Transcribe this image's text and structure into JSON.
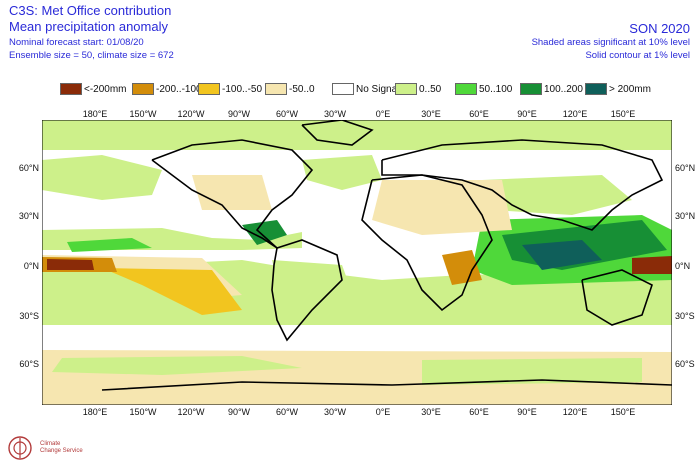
{
  "header": {
    "title": "C3S: Met Office contribution",
    "subtitle": "Mean precipitation anomaly",
    "forecast_start": "Nominal forecast start: 01/08/20",
    "ensemble": "Ensemble size = 50, climate size = 672",
    "season": "SON 2020",
    "note1": "Shaded areas significant at 10% level",
    "note2": "Solid contour at 1% level"
  },
  "legend": [
    {
      "label": "<-200mm",
      "color": "#8a2b08"
    },
    {
      "label": "-200..-100",
      "color": "#d38d0a"
    },
    {
      "label": "-100..-50",
      "color": "#f2c51f"
    },
    {
      "label": "-50..0",
      "color": "#f6e6b0"
    },
    {
      "label": "No Signal",
      "color": "#ffffff"
    },
    {
      "label": "0..50",
      "color": "#cdf08a"
    },
    {
      "label": "50..100",
      "color": "#4fd83a"
    },
    {
      "label": "100..200",
      "color": "#178f35"
    },
    {
      "label": "> 200mm",
      "color": "#0f5f5a"
    }
  ],
  "axes": {
    "lon_ticks": [
      "180°E",
      "150°W",
      "120°W",
      "90°W",
      "60°W",
      "30°W",
      "0°E",
      "30°E",
      "60°E",
      "90°E",
      "120°E",
      "150°E"
    ],
    "lat_ticks": [
      "60°N",
      "30°N",
      "0°N",
      "30°S",
      "60°S"
    ]
  },
  "logo": {
    "line1": "Climate",
    "line2": "Change Service"
  }
}
